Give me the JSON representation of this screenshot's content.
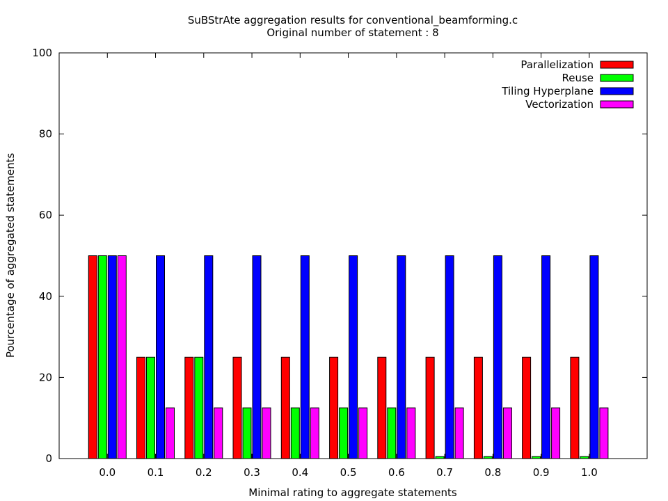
{
  "chart_data": {
    "type": "bar",
    "title": "SuBStrAte aggregation results for conventional_beamforming.c",
    "subtitle": "Original number of statement : 8",
    "xlabel": "Minimal rating to aggregate statements",
    "ylabel": "Pourcentage of aggregated statements",
    "ylim": [
      0,
      100
    ],
    "yticks": [
      "0",
      "20",
      "40",
      "60",
      "80",
      "100"
    ],
    "categories": [
      "0.0",
      "0.1",
      "0.2",
      "0.3",
      "0.4",
      "0.5",
      "0.6",
      "0.7",
      "0.8",
      "0.9",
      "1.0"
    ],
    "legend_position": "top-right",
    "grid": false,
    "series": [
      {
        "name": "Parallelization",
        "color": "#ff0000",
        "values": [
          50,
          25,
          25,
          25,
          25,
          25,
          25,
          25,
          25,
          25,
          25
        ]
      },
      {
        "name": "Reuse",
        "color": "#00ff00",
        "values": [
          50,
          25,
          25,
          12.5,
          12.5,
          12.5,
          12.5,
          0.5,
          0.5,
          0.5,
          0.5
        ]
      },
      {
        "name": "Tiling Hyperplane",
        "color": "#0000ff",
        "values": [
          50,
          50,
          50,
          50,
          50,
          50,
          50,
          50,
          50,
          50,
          50
        ]
      },
      {
        "name": "Vectorization",
        "color": "#ff00ff",
        "values": [
          50,
          12.5,
          12.5,
          12.5,
          12.5,
          12.5,
          12.5,
          12.5,
          12.5,
          12.5,
          12.5
        ]
      }
    ]
  }
}
